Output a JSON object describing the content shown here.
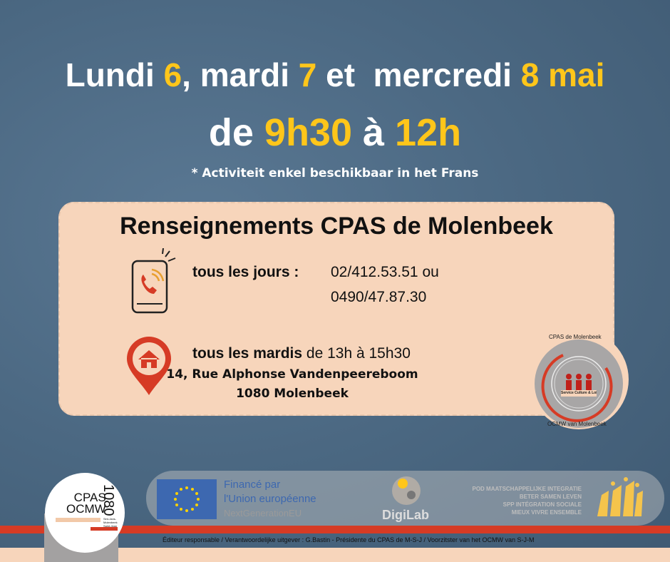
{
  "headline": {
    "p1": "Lundi ",
    "d1": "6",
    "p2": ", mardi ",
    "d2": "7",
    "p3": " et  mercredi ",
    "d3": "8 mai"
  },
  "time": {
    "p1": "de ",
    "start": "9h30",
    "p2": " à ",
    "end": "12h"
  },
  "note": "* Activiteit enkel beschikbaar in het Frans",
  "info": {
    "title": "Renseignements CPAS de Molenbeek",
    "phone_label": "tous les jours :",
    "phone1": "02/412.53.51 ou",
    "phone2": "0490/47.87.30",
    "visit_label": "tous les mardis",
    "visit_hours": "de 13h à 15h30",
    "address1": "14, Rue Alphonse Vandenpeereboom",
    "address2": "1080 Molenbeek"
  },
  "badge": {
    "top": "CPAS de Molenbeek",
    "bottom": "OCMW van Molenbeek",
    "inner": "Service Culture & Loisirs"
  },
  "logo": {
    "line1": "CPAS",
    "line2": "OCMW",
    "number": "1080",
    "sub": "Sint-Jans-Molenbeek Saint-Jean"
  },
  "funding": {
    "line1": "Financé par",
    "line2": "l'Union européenne",
    "line3": "NextGenerationEU",
    "digilab": "DigiLab",
    "pod1": "POD MAATSCHAPPELIJKE INTEGRATIE",
    "pod2": "BETER SAMEN LEVEN",
    "spp1": "SPP INTÉGRATION SOCIALE",
    "spp2": "MIEUX VIVRE ENSEMBLE"
  },
  "footer": "Éditeur responsable / Verantwoordelijke uitgever : G.Bastin - Présidente du CPAS de M-S-J / Voorzitster van het OCMW van S-J-M",
  "colors": {
    "accent": "#ffc61a",
    "background": "#4d6b86",
    "panel": "#f7d5bb",
    "red": "#d63b25"
  }
}
